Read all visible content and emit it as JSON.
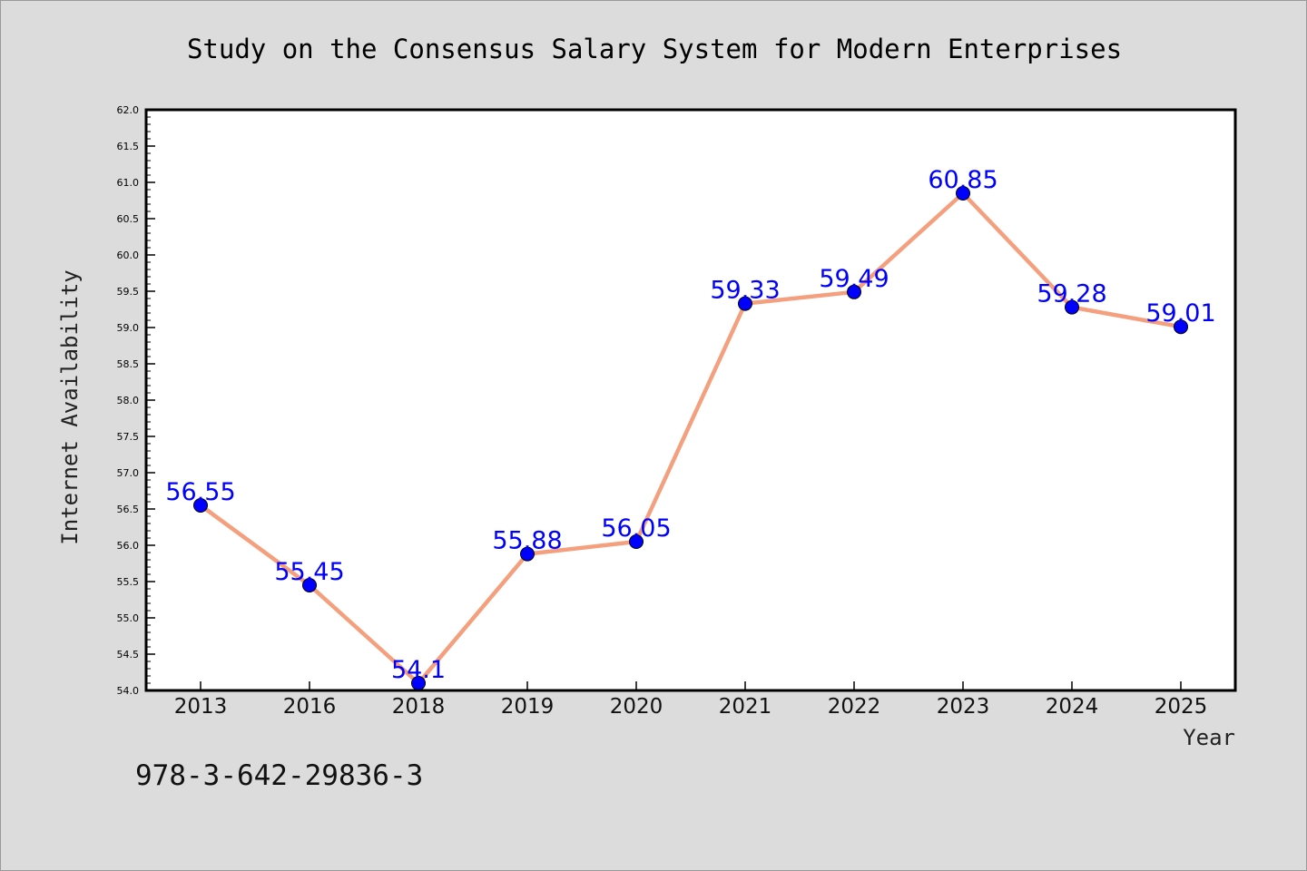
{
  "chart_data": {
    "type": "line",
    "title": "Study on the Consensus Salary System for Modern Enterprises",
    "xlabel": "Year",
    "ylabel": "Internet Availability",
    "categories": [
      "2013",
      "2016",
      "2018",
      "2019",
      "2020",
      "2021",
      "2022",
      "2023",
      "2024",
      "2025"
    ],
    "series": [
      {
        "values": [
          56.55,
          55.45,
          54.1,
          55.88,
          56.05,
          59.33,
          59.49,
          60.85,
          59.28,
          59.01
        ],
        "labels": [
          "56.55",
          "55.45",
          "54.1",
          "55.88",
          "56.05",
          "59.33",
          "59.49",
          "60.85",
          "59.28",
          "59.01"
        ]
      }
    ],
    "ylim": [
      54.0,
      62.0
    ],
    "yticks": [
      "54.0",
      "54.5",
      "55.0",
      "55.5",
      "56.0",
      "56.5",
      "57.0",
      "57.5",
      "58.0",
      "58.5",
      "59.0",
      "59.5",
      "60.0",
      "60.5",
      "61.0",
      "61.5",
      "62.0"
    ],
    "grid": false,
    "line_color": "#f4a07e",
    "marker_color": "#0000ff",
    "label_color": "#0000ff",
    "plot_background": "#ffffff",
    "figure_background": "#dcdcdc"
  },
  "footer": {
    "isbn": "978-3-642-29836-3"
  }
}
